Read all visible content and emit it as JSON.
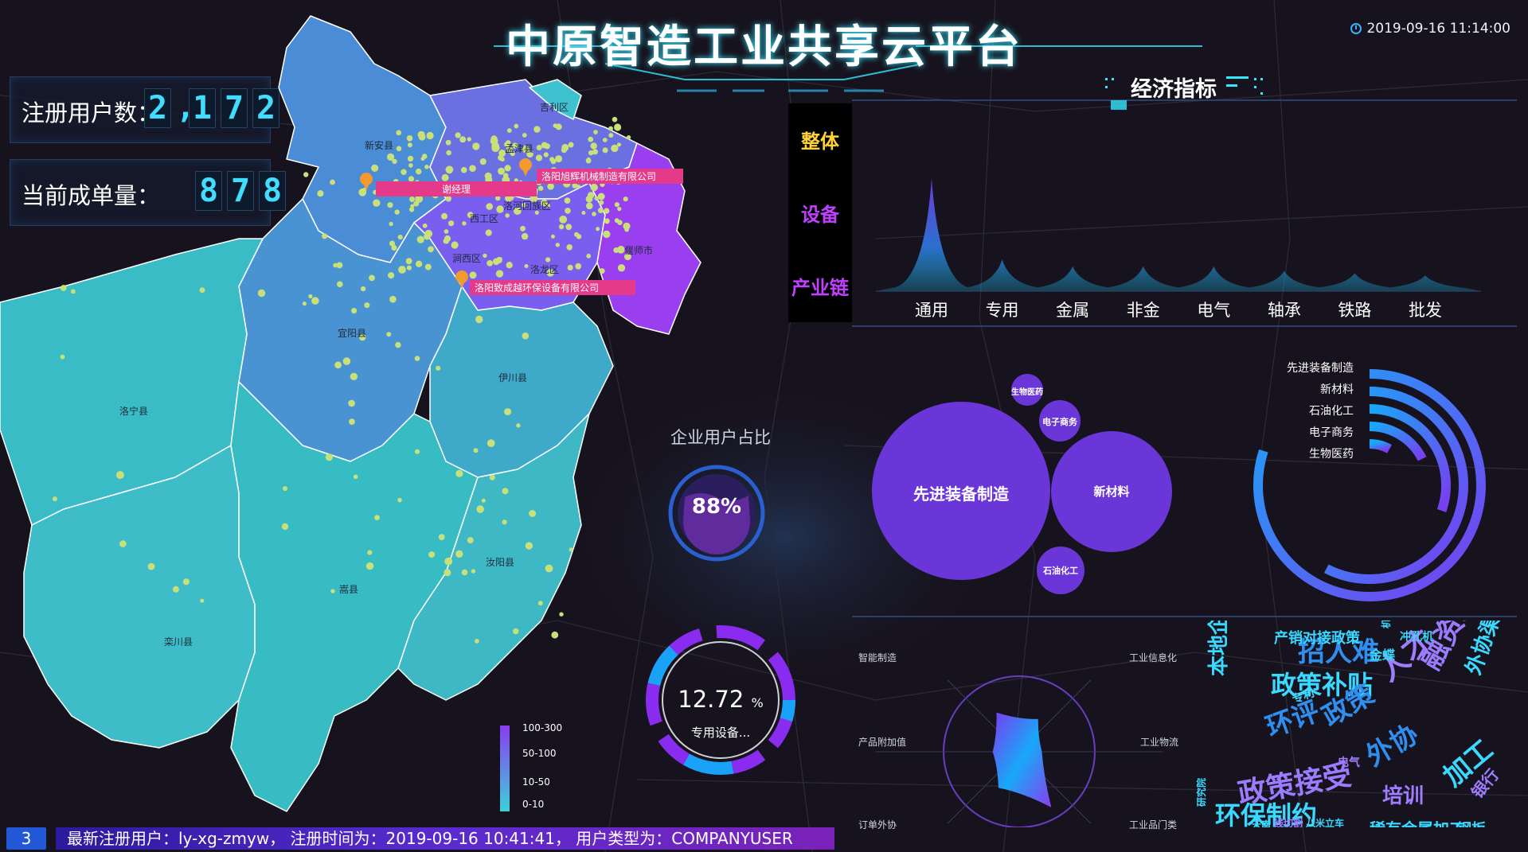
{
  "header": {
    "title": "中原智造工业共享云平台",
    "datetime": "2019-09-16 11:14:00",
    "subtitle": "经济指标"
  },
  "stats": {
    "registered_label": "注册用户数：",
    "registered_value": [
      "2",
      ",",
      "1",
      "7",
      "2"
    ],
    "orders_label": "当前成单量：",
    "orders_value": [
      "8",
      "7",
      "8"
    ]
  },
  "nav": {
    "items": [
      "整体",
      "设备",
      "产业链"
    ],
    "colors": [
      "#ffd23a",
      "#c040ff",
      "#c040ff"
    ]
  },
  "map": {
    "districts": [
      "新安县",
      "孟津县",
      "吉利区",
      "西工区",
      "洛河回族区",
      "涧西区",
      "洛龙区",
      "偃师市",
      "宜阳县",
      "伊川县",
      "洛宁县",
      "嵩县",
      "汝阳县",
      "栾川县"
    ],
    "tags": [
      "谢经理",
      "洛阳旭辉机械制造有限公司",
      "洛阳致成越环保设备有限公司"
    ],
    "legend": [
      "100-300",
      "50-100",
      "10-50",
      "0-10"
    ]
  },
  "enterprise_share": {
    "title": "企业用户占比",
    "value_label": "88%",
    "value": 88
  },
  "special_ring": {
    "value_label": "12.72",
    "unit": "%",
    "label": "专用设备...",
    "value": 12.72
  },
  "chart_data": [
    {
      "type": "area",
      "categories": [
        "通用",
        "专用",
        "金属",
        "非金",
        "电气",
        "轴承",
        "铁路",
        "批发"
      ],
      "values": [
        100,
        28,
        22,
        22,
        22,
        18,
        16,
        14
      ]
    },
    {
      "type": "bubble",
      "labels": [
        "先进装备制造",
        "新材料",
        "石油化工",
        "电子商务",
        "生物医药"
      ],
      "values": [
        100,
        55,
        22,
        18,
        12
      ]
    },
    {
      "type": "radial-bar",
      "labels": [
        "先进装备制造",
        "新材料",
        "石油化工",
        "电子商务",
        "生物医药"
      ],
      "values": [
        100,
        72,
        38,
        22,
        10
      ]
    },
    {
      "type": "radar",
      "indicators": [
        "智能制造",
        "工业信息化",
        "工业物流",
        "工业品门类",
        "订单外协",
        "产品附加值"
      ],
      "values": [
        0.5,
        0.3,
        0.85,
        0.55,
        0.35,
        0.6
      ]
    }
  ],
  "word_cloud": [
    {
      "text": "招人难",
      "size": 34,
      "color": "#2f8ff0"
    },
    {
      "text": "政策补贴",
      "size": 32,
      "color": "#3ad9ff"
    },
    {
      "text": "融资难",
      "size": 36,
      "color": "#9b7cff"
    },
    {
      "text": "外协渠道单一",
      "size": 26,
      "color": "#3ad9ff"
    },
    {
      "text": "本地企业扶持",
      "size": 26,
      "color": "#3ad9ff"
    },
    {
      "text": "环评",
      "size": 34,
      "color": "#2f8ff0"
    },
    {
      "text": "政策",
      "size": 34,
      "color": "#2f8ff0"
    },
    {
      "text": "人才",
      "size": 38,
      "color": "#a07cff"
    },
    {
      "text": "政策接受",
      "size": 36,
      "color": "#9b7cff"
    },
    {
      "text": "外协",
      "size": 34,
      "color": "#2f8ff0"
    },
    {
      "text": "加工",
      "size": 34,
      "color": "#3ad9ff"
    },
    {
      "text": "培训",
      "size": 26,
      "color": "#a07cff"
    },
    {
      "text": "环保制约",
      "size": 32,
      "color": "#3ad9ff"
    },
    {
      "text": "稀有金属加工",
      "size": 20,
      "color": "#3ad9ff"
    },
    {
      "text": "产销对接政策",
      "size": 18,
      "color": "#3ad9ff"
    },
    {
      "text": "银行",
      "size": 20,
      "color": "#a07cff"
    },
    {
      "text": "钢板",
      "size": 18,
      "color": "#3ad9ff"
    },
    {
      "text": "冲孔机",
      "size": 14,
      "color": "#3ad9ff"
    },
    {
      "text": "金蝶",
      "size": 16,
      "color": "#3ad9ff"
    },
    {
      "text": "专利",
      "size": 14,
      "color": "#3ad9ff"
    },
    {
      "text": "电气",
      "size": 14,
      "color": "#a07cff"
    },
    {
      "text": "研究院",
      "size": 12,
      "color": "#3ad9ff"
    },
    {
      "text": "八米立车",
      "size": 12,
      "color": "#3ad9ff"
    },
    {
      "text": "线切割",
      "size": 12,
      "color": "#a07cff"
    },
    {
      "text": "云南",
      "size": 12,
      "color": "#3ad9ff"
    },
    {
      "text": "机械",
      "size": 12,
      "color": "#3ad9ff"
    }
  ],
  "footer": {
    "badge": "3",
    "ticker": "最新注册用户：ly-xg-zmyw， 注册时间为：2019-09-16 10:41:41， 用户类型为：COMPANYUSER"
  }
}
